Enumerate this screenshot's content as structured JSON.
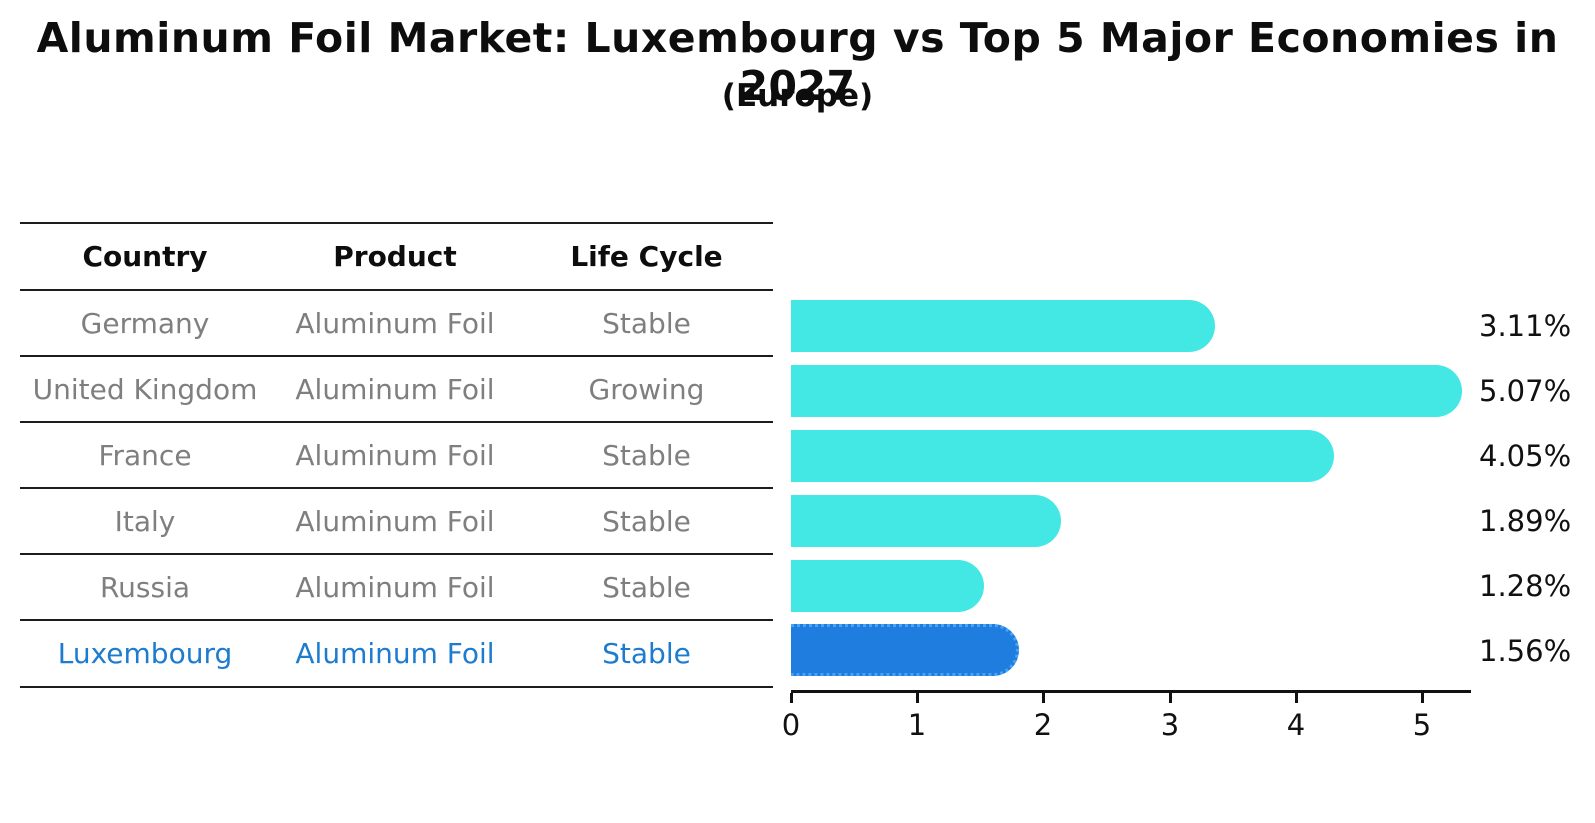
{
  "title": "Aluminum Foil Market: Luxembourg vs Top 5 Major Economies in 2027",
  "subtitle": "(Europe)",
  "table": {
    "headers": [
      "Country",
      "Product",
      "Life Cycle"
    ],
    "rows": [
      {
        "country": "Germany",
        "product": "Aluminum Foil",
        "life_cycle": "Stable",
        "highlight": false
      },
      {
        "country": "United Kingdom",
        "product": "Aluminum Foil",
        "life_cycle": "Growing",
        "highlight": false
      },
      {
        "country": "France",
        "product": "Aluminum Foil",
        "life_cycle": "Stable",
        "highlight": false
      },
      {
        "country": "Italy",
        "product": "Aluminum Foil",
        "life_cycle": "Stable",
        "highlight": false
      },
      {
        "country": "Russia",
        "product": "Aluminum Foil",
        "life_cycle": "Stable",
        "highlight": true
      }
    ],
    "highlight_row": {
      "country": "Luxembourg",
      "product": "Aluminum Foil",
      "life_cycle": "Stable"
    }
  },
  "chart_data": {
    "type": "bar",
    "orientation": "horizontal",
    "categories": [
      "Germany",
      "United Kingdom",
      "France",
      "Italy",
      "Russia",
      "Luxembourg"
    ],
    "values": [
      3.11,
      5.07,
      4.05,
      1.89,
      1.28,
      1.56
    ],
    "labels": [
      "3.11%",
      "5.07%",
      "4.05%",
      "1.89%",
      "1.28%",
      "1.56%"
    ],
    "x_ticks": [
      0,
      1,
      2,
      3,
      4,
      5
    ],
    "xlim": [
      0,
      5.35
    ],
    "grid": false,
    "legend": "none",
    "bar_color": "#43e8e4",
    "highlight_color": "#1f7de0",
    "highlight_index": 5,
    "highlight_text_color": "#1e7cd0"
  }
}
